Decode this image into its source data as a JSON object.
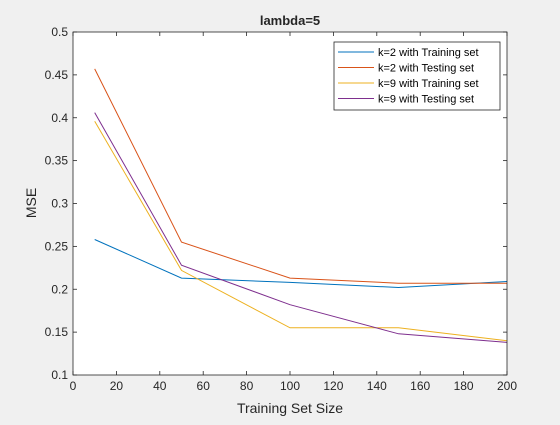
{
  "chart_data": {
    "type": "line",
    "title": "lambda=5",
    "xlabel": "Training Set Size",
    "ylabel": "MSE",
    "xlim": [
      0,
      200
    ],
    "ylim": [
      0.1,
      0.5
    ],
    "xticks": [
      "0",
      "20",
      "40",
      "60",
      "80",
      "100",
      "120",
      "140",
      "160",
      "180",
      "200"
    ],
    "yticks": [
      "0.1",
      "0.15",
      "0.2",
      "0.25",
      "0.3",
      "0.35",
      "0.4",
      "0.45",
      "0.5"
    ],
    "grid": false,
    "legend_position": "top-right",
    "series": [
      {
        "name": "k=2 with Training set",
        "color": "#0072BD",
        "x": [
          10,
          50,
          100,
          150,
          200
        ],
        "y": [
          0.258,
          0.213,
          0.208,
          0.202,
          0.209
        ]
      },
      {
        "name": "k=2 with Testing set",
        "color": "#D95319",
        "x": [
          10,
          50,
          100,
          150,
          200
        ],
        "y": [
          0.457,
          0.255,
          0.213,
          0.207,
          0.207
        ]
      },
      {
        "name": "k=9 with Training set",
        "color": "#EDB120",
        "x": [
          10,
          50,
          100,
          150,
          200
        ],
        "y": [
          0.396,
          0.222,
          0.155,
          0.155,
          0.14
        ]
      },
      {
        "name": "k=9 with Testing set",
        "color": "#7E2F8E",
        "x": [
          10,
          50,
          100,
          150,
          200
        ],
        "y": [
          0.406,
          0.228,
          0.182,
          0.148,
          0.138
        ]
      }
    ]
  }
}
